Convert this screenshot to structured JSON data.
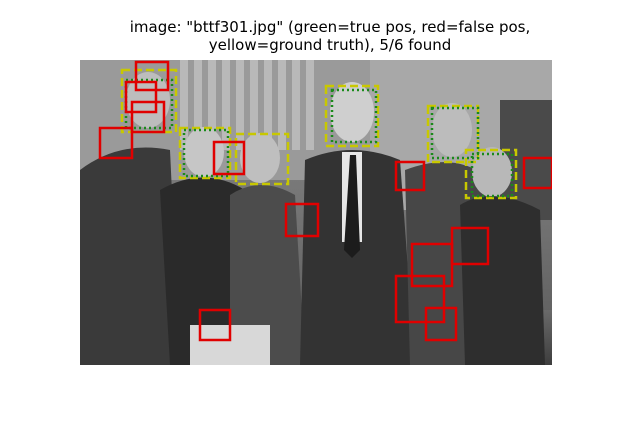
{
  "figure": {
    "title_line1": "image: \"bttf301.jpg\" (green=true pos, red=false pos,",
    "title_line2": "yellow=ground truth), 5/6 found"
  },
  "legend_colors": {
    "true_pos": "#1a8a1a",
    "false_pos": "#e00000",
    "ground_truth": "#c8c800"
  },
  "detections": {
    "true_positives": 5,
    "ground_truth_total": 6
  }
}
